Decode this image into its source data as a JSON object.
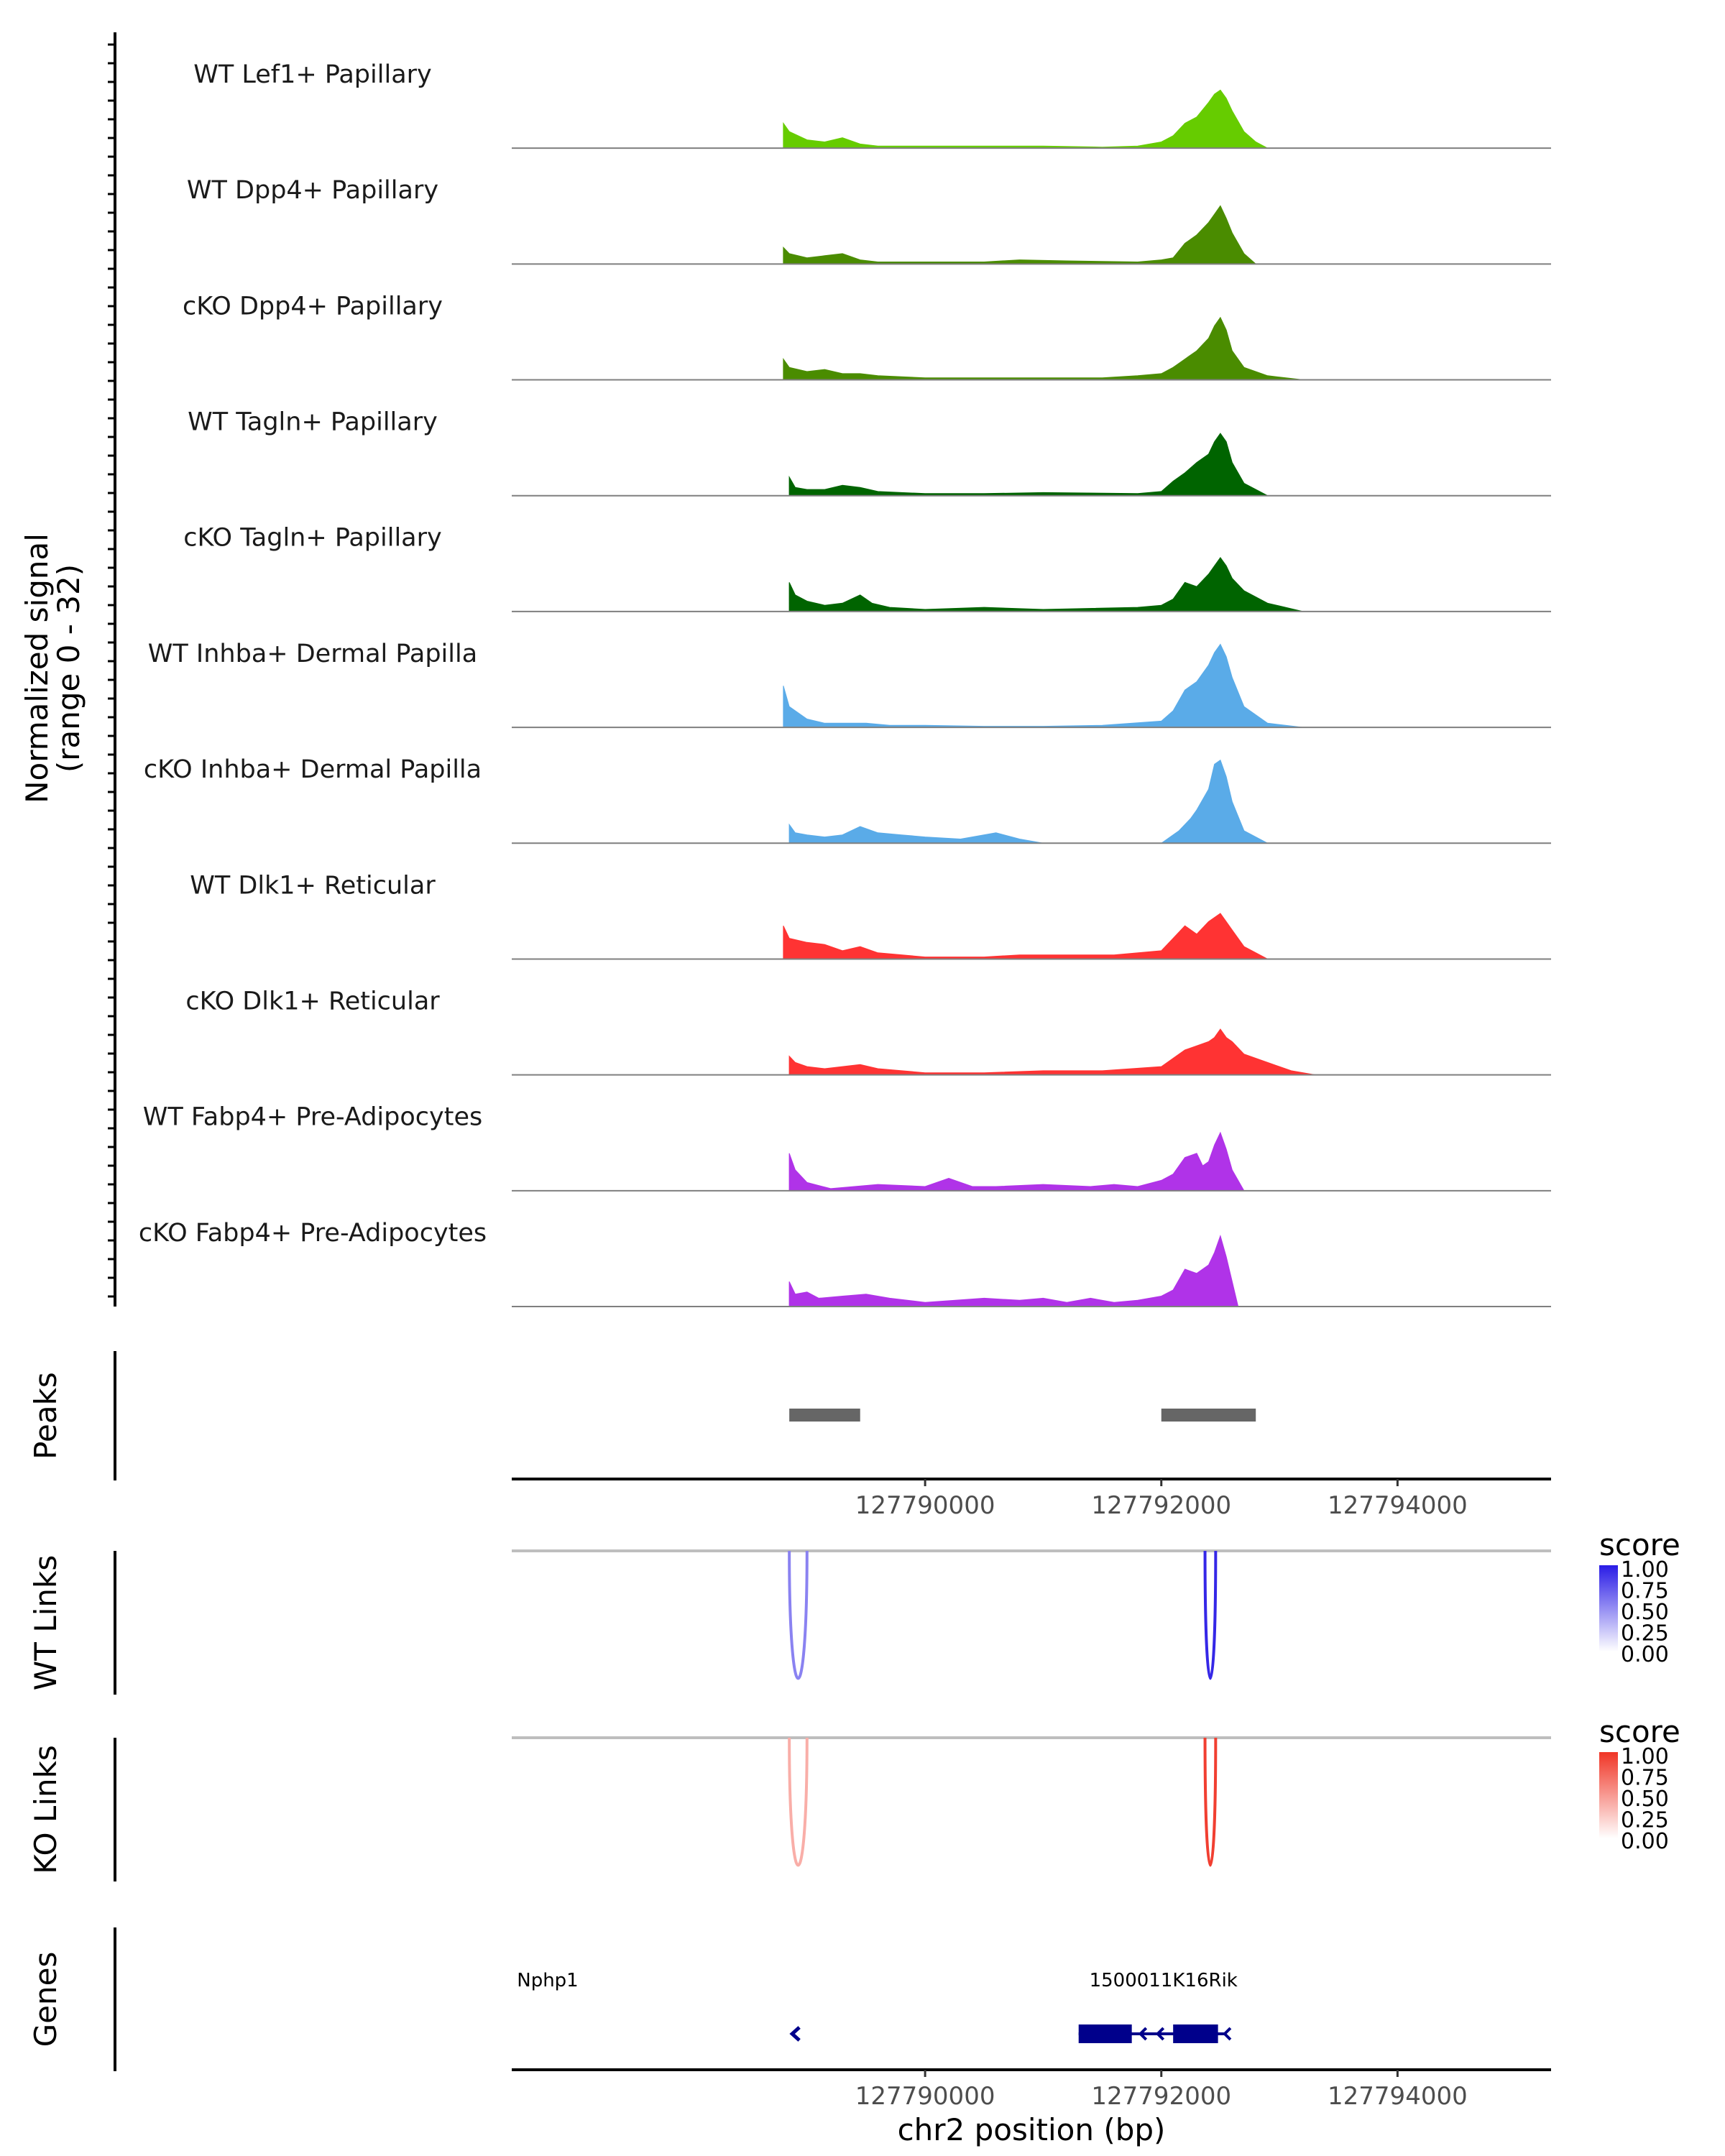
{
  "chart_data": {
    "type": "area",
    "title": "",
    "chromosome": "chr2",
    "xlabel": "chr2 position (bp)",
    "x_range": [
      127786500,
      127795300
    ],
    "x_ticks": [
      127790000,
      127792000,
      127794000
    ],
    "x_tick_labels": [
      "127790000",
      "127792000",
      "127794000"
    ],
    "ylabel_line1": "Normalized signal",
    "ylabel_line2": "(range 0 - 32)",
    "ylim": [
      0,
      32
    ],
    "coverage_tracks": [
      {
        "name": "WT Lef1+ Papillary",
        "color": "#66cc00",
        "x": [
          127788800,
          127788850,
          127789000,
          127789150,
          127789300,
          127789450,
          127789600,
          127790000,
          127790500,
          127791000,
          127791500,
          127791800,
          127792000,
          127792100,
          127792200,
          127792300,
          127792400,
          127792450,
          127792500,
          127792550,
          127792600,
          127792700,
          127792800,
          127792900
        ],
        "values": [
          12,
          8,
          4,
          3,
          5,
          2,
          1,
          1,
          1,
          1,
          0.5,
          1,
          3,
          6,
          12,
          15,
          22,
          26,
          28,
          24,
          18,
          8,
          3,
          0
        ],
        "label_text": "WT Lef1+ Papillary"
      },
      {
        "name": "WT Dpp4+ Papillary",
        "color": "#4a8c00",
        "x": [
          127788800,
          127788850,
          127789000,
          127789150,
          127789300,
          127789450,
          127789600,
          127790000,
          127790500,
          127790800,
          127791200,
          127791800,
          127792000,
          127792100,
          127792200,
          127792300,
          127792400,
          127792450,
          127792500,
          127792550,
          127792600,
          127792700,
          127792800
        ],
        "values": [
          8,
          5,
          3,
          4,
          5,
          2,
          1,
          1,
          1,
          2,
          1.5,
          1,
          2,
          3,
          10,
          14,
          20,
          24,
          28,
          22,
          15,
          5,
          0
        ],
        "label_text": "WT Dpp4+ Papillary"
      },
      {
        "name": "cKO Dpp4+ Papillary",
        "color": "#4a8c00",
        "x": [
          127788800,
          127788850,
          127789000,
          127789150,
          127789300,
          127789450,
          127789600,
          127790000,
          127790500,
          127791000,
          127791500,
          127791800,
          127792000,
          127792100,
          127792200,
          127792300,
          127792400,
          127792450,
          127792500,
          127792550,
          127792600,
          127792700,
          127792900,
          127793200
        ],
        "values": [
          10,
          6,
          4,
          5,
          3,
          3,
          2,
          1,
          1,
          1,
          1,
          2,
          3,
          6,
          10,
          14,
          20,
          26,
          30,
          24,
          14,
          6,
          2,
          0
        ],
        "label_text": "cKO Dpp4+ Papillary"
      },
      {
        "name": "WT Tagln+ Papillary",
        "color": "#006400",
        "x": [
          127788850,
          127788900,
          127789000,
          127789150,
          127789300,
          127789450,
          127789600,
          127790000,
          127790500,
          127791000,
          127791800,
          127792000,
          127792100,
          127792200,
          127792300,
          127792400,
          127792450,
          127792500,
          127792550,
          127792600,
          127792700,
          127792900
        ],
        "values": [
          9,
          4,
          3,
          3,
          5,
          4,
          2,
          1,
          1,
          1.5,
          1,
          2,
          7,
          11,
          16,
          20,
          26,
          30,
          26,
          16,
          6,
          0
        ],
        "label_text": "WT Tagln+ Papillary"
      },
      {
        "name": "cKO Tagln+ Papillary",
        "color": "#006400",
        "x": [
          127788850,
          127788900,
          127789000,
          127789150,
          127789300,
          127789450,
          127789550,
          127789700,
          127790000,
          127790500,
          127791000,
          127791800,
          127792000,
          127792100,
          127792200,
          127792300,
          127792400,
          127792450,
          127792500,
          127792550,
          127792600,
          127792700,
          127792900,
          127793200
        ],
        "values": [
          14,
          8,
          5,
          3,
          4,
          8,
          4,
          2,
          1,
          2,
          1,
          2,
          3,
          6,
          14,
          12,
          18,
          22,
          26,
          22,
          16,
          10,
          4,
          0
        ],
        "label_text": "cKO Tagln+ Papillary"
      },
      {
        "name": "WT Inhba+ Dermal Papilla",
        "color": "#5aabe8",
        "x": [
          127788800,
          127788850,
          127789000,
          127789150,
          127789300,
          127789500,
          127789700,
          127790000,
          127790500,
          127791000,
          127791500,
          127792000,
          127792100,
          127792200,
          127792300,
          127792400,
          127792450,
          127792500,
          127792550,
          127792600,
          127792700,
          127792900,
          127793200
        ],
        "values": [
          20,
          10,
          4,
          2,
          2,
          2,
          1,
          1,
          0.5,
          0.5,
          1,
          3,
          8,
          18,
          22,
          30,
          36,
          40,
          34,
          24,
          10,
          2,
          0
        ],
        "label_text": "WT Inhba+ Dermal Papilla"
      },
      {
        "name": "cKO Inhba+ Dermal Papilla",
        "color": "#5aabe8",
        "x": [
          127788850,
          127788900,
          127789000,
          127789150,
          127789300,
          127789450,
          127789600,
          127789800,
          127790000,
          127790300,
          127790600,
          127790800,
          127791000,
          127792000,
          127792150,
          127792250,
          127792300,
          127792400,
          127792450,
          127792500,
          127792550,
          127792600,
          127792700,
          127792900
        ],
        "values": [
          9,
          5,
          4,
          3,
          4,
          8,
          5,
          4,
          3,
          2,
          5,
          2,
          0,
          0,
          6,
          12,
          16,
          26,
          38,
          40,
          32,
          20,
          6,
          0
        ],
        "label_text": "cKO Inhba+ Dermal Papilla"
      },
      {
        "name": "WT Dlk1+ Reticular",
        "color": "#ff3333",
        "x": [
          127788800,
          127788850,
          127789000,
          127789150,
          127789300,
          127789450,
          127789600,
          127790000,
          127790500,
          127790800,
          127791200,
          127791600,
          127792000,
          127792100,
          127792200,
          127792300,
          127792400,
          127792450,
          127792500,
          127792550,
          127792600,
          127792700,
          127792900
        ],
        "values": [
          16,
          10,
          8,
          7,
          4,
          6,
          3,
          1,
          1,
          2,
          2,
          2,
          4,
          10,
          16,
          12,
          18,
          20,
          22,
          18,
          14,
          6,
          0
        ],
        "label_text": "WT Dlk1+ Reticular"
      },
      {
        "name": "cKO Dlk1+ Reticular",
        "color": "#ff3333",
        "x": [
          127788850,
          127788900,
          127789000,
          127789150,
          127789300,
          127789450,
          127789600,
          127790000,
          127790500,
          127791000,
          127791500,
          127792000,
          127792100,
          127792200,
          127792300,
          127792400,
          127792450,
          127792500,
          127792550,
          127792600,
          127792700,
          127792900,
          127793100,
          127793300
        ],
        "values": [
          9,
          6,
          4,
          3,
          4,
          5,
          3,
          1,
          1,
          2,
          2,
          4,
          8,
          12,
          14,
          16,
          18,
          22,
          18,
          16,
          10,
          6,
          2,
          0
        ],
        "label_text": "cKO Dlk1+ Reticular"
      },
      {
        "name": "WT Fabp4+ Pre-Adipocytes",
        "color": "#b033e8",
        "x": [
          127788850,
          127788900,
          127789000,
          127789200,
          127789600,
          127790000,
          127790200,
          127790400,
          127790600,
          127791000,
          127791400,
          127791600,
          127791800,
          127792000,
          127792100,
          127792200,
          127792300,
          127792350,
          127792400,
          127792450,
          127792500,
          127792550,
          127792600,
          127792700
        ],
        "values": [
          18,
          10,
          4,
          1,
          3,
          2,
          6,
          2,
          2,
          3,
          2,
          3,
          2,
          5,
          8,
          16,
          18,
          12,
          14,
          22,
          28,
          20,
          10,
          0
        ],
        "label_text": "WT Fabp4+ Pre-Adipocytes"
      },
      {
        "name": "cKO Fabp4+ Pre-Adipocytes",
        "color": "#b033e8",
        "x": [
          127788850,
          127788900,
          127789000,
          127789100,
          127789300,
          127789500,
          127789700,
          127790000,
          127790500,
          127790800,
          127791000,
          127791200,
          127791400,
          127791600,
          127791800,
          127792000,
          127792100,
          127792200,
          127792300,
          127792400,
          127792450,
          127792500,
          127792550,
          127792650
        ],
        "values": [
          12,
          6,
          7,
          4,
          5,
          6,
          4,
          2,
          4,
          3,
          4,
          2,
          4,
          2,
          3,
          5,
          8,
          18,
          16,
          20,
          26,
          34,
          24,
          0
        ],
        "label_text": "cKO Fabp4+ Pre-Adipocytes"
      }
    ],
    "peaks_label": "Peaks",
    "peaks": [
      {
        "start": 127788850,
        "end": 127789450
      },
      {
        "start": 127792000,
        "end": 127792800
      }
    ],
    "links_tracks": [
      {
        "name": "WT Links",
        "label_text": "WT Links",
        "color_high": "#2a1ce6",
        "legend_title": "score",
        "legend_ticks": [
          "1.00",
          "0.75",
          "0.50",
          "0.25",
          "0.00"
        ],
        "links": [
          {
            "start": 127788850,
            "end": 127789000,
            "score": 0.55
          },
          {
            "start": 127792370,
            "end": 127792460,
            "score": 0.95
          }
        ]
      },
      {
        "name": "KO Links",
        "label_text": "KO Links",
        "color_high": "#f03526",
        "legend_title": "score",
        "legend_ticks": [
          "1.00",
          "0.75",
          "0.50",
          "0.25",
          "0.00"
        ],
        "links": [
          {
            "start": 127788850,
            "end": 127789000,
            "score": 0.4
          },
          {
            "start": 127792370,
            "end": 127792460,
            "score": 0.95
          }
        ]
      }
    ],
    "genes_label": "Genes",
    "genes": [
      {
        "name": "Nphp1",
        "label": "Nphp1",
        "strand": "-",
        "start": 127788850,
        "end": 127788950,
        "exons": []
      },
      {
        "name": "1500011K16Rik",
        "label": "1500011K16Rik",
        "strand": "-",
        "start": 127791300,
        "end": 127792500,
        "exons": [
          [
            127791300,
            127791750
          ],
          [
            127792100,
            127792480
          ]
        ]
      }
    ]
  },
  "colors": {
    "axis": "#000000",
    "baseline": "#7f7f7f",
    "peak": "#666666",
    "gene": "#00008b",
    "links_baseline": "#bebebe"
  }
}
